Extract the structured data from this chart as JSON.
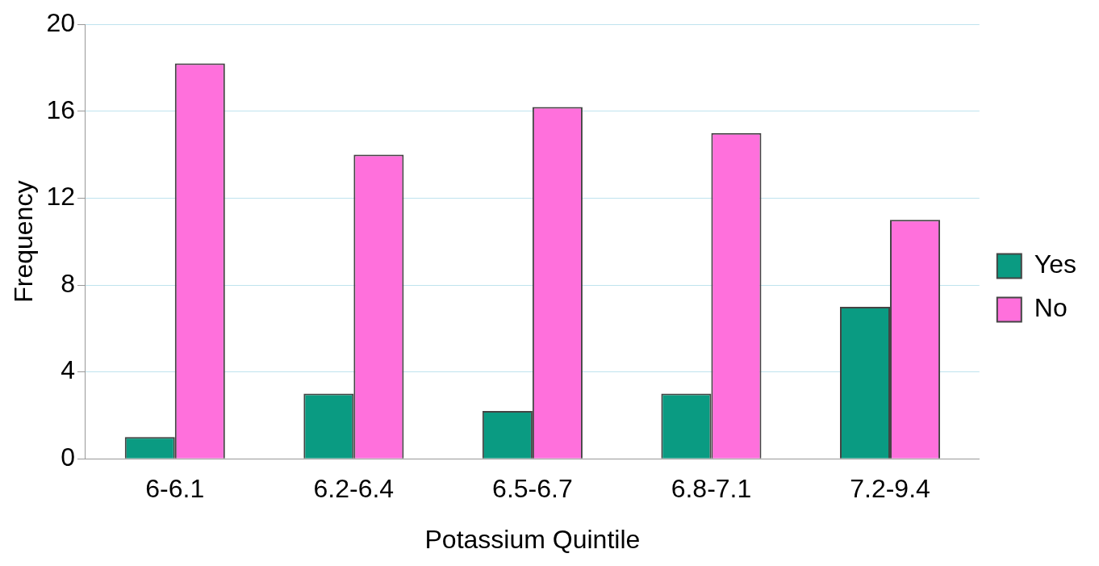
{
  "chart_data": {
    "type": "bar",
    "xlabel": "Potassium Quintile",
    "ylabel": "Frequency",
    "categories": [
      "6-6.1",
      "6.2-6.4",
      "6.5-6.7",
      "6.8-7.1",
      "7.2-9.4"
    ],
    "series": [
      {
        "name": "Yes",
        "color": "#0a9b82",
        "values": [
          1,
          3,
          2.2,
          3,
          7
        ]
      },
      {
        "name": "No",
        "color": "#ff70dc",
        "values": [
          18.2,
          14,
          16.2,
          15,
          11
        ]
      }
    ],
    "ylim": [
      0,
      20
    ],
    "yticks": [
      0,
      4,
      8,
      12,
      16,
      20
    ],
    "grid": "y",
    "legend": "right"
  }
}
